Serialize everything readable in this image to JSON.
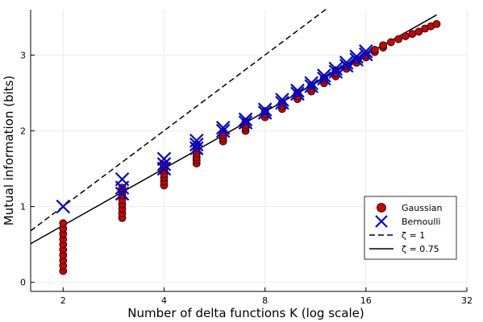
{
  "chart_data": {
    "type": "scatter",
    "xlabel": "Number of delta functions K (log scale)",
    "ylabel": "Mutual information (bits)",
    "x_scale": "log2",
    "xlim": [
      1.6,
      32
    ],
    "ylim": [
      -0.12,
      3.6
    ],
    "x_ticks": [
      2,
      4,
      8,
      16,
      32
    ],
    "x_tick_labels": [
      "2",
      "4",
      "8",
      "16",
      "32"
    ],
    "y_ticks": [
      0,
      1,
      2,
      3
    ],
    "y_tick_labels": [
      "0",
      "1",
      "2",
      "3"
    ],
    "grid": true,
    "legend_position": "bottom-right",
    "series": [
      {
        "name": "Gaussian",
        "kind": "scatter",
        "marker": "circle",
        "color": "#cc0000",
        "points": [
          [
            2,
            0.15
          ],
          [
            2,
            0.22
          ],
          [
            2,
            0.29
          ],
          [
            2,
            0.36
          ],
          [
            2,
            0.43
          ],
          [
            2,
            0.5
          ],
          [
            2,
            0.57
          ],
          [
            2,
            0.64
          ],
          [
            2,
            0.71
          ],
          [
            2,
            0.78
          ],
          [
            3,
            0.85
          ],
          [
            3,
            0.91
          ],
          [
            3,
            0.97
          ],
          [
            3,
            1.03
          ],
          [
            3,
            1.09
          ],
          [
            3,
            1.15
          ],
          [
            3,
            1.2
          ],
          [
            3,
            1.25
          ],
          [
            4,
            1.28
          ],
          [
            4,
            1.33
          ],
          [
            4,
            1.38
          ],
          [
            4,
            1.43
          ],
          [
            4,
            1.48
          ],
          [
            4,
            1.52
          ],
          [
            4,
            1.55
          ],
          [
            5,
            1.57
          ],
          [
            5,
            1.61
          ],
          [
            5,
            1.65
          ],
          [
            5,
            1.69
          ],
          [
            5,
            1.73
          ],
          [
            5,
            1.77
          ],
          [
            5,
            1.8
          ],
          [
            6,
            1.86
          ],
          [
            6,
            1.9
          ],
          [
            6,
            1.94
          ],
          [
            6,
            1.98
          ],
          [
            7,
            2.0
          ],
          [
            7,
            2.04
          ],
          [
            7,
            2.08
          ],
          [
            7,
            2.12
          ],
          [
            8,
            2.18
          ],
          [
            8,
            2.22
          ],
          [
            8,
            2.26
          ],
          [
            9,
            2.29
          ],
          [
            9,
            2.33
          ],
          [
            9,
            2.37
          ],
          [
            10,
            2.42
          ],
          [
            10,
            2.46
          ],
          [
            10,
            2.5
          ],
          [
            11,
            2.52
          ],
          [
            11,
            2.56
          ],
          [
            11,
            2.6
          ],
          [
            12,
            2.63
          ],
          [
            12,
            2.67
          ],
          [
            12,
            2.7
          ],
          [
            13,
            2.72
          ],
          [
            13,
            2.76
          ],
          [
            13,
            2.8
          ],
          [
            14,
            2.82
          ],
          [
            14,
            2.86
          ],
          [
            15,
            2.9
          ],
          [
            15,
            2.94
          ],
          [
            16,
            2.97
          ],
          [
            16,
            3.0
          ],
          [
            17,
            3.04
          ],
          [
            17,
            3.07
          ],
          [
            18,
            3.1
          ],
          [
            18,
            3.13
          ],
          [
            19,
            3.17
          ],
          [
            20,
            3.21
          ],
          [
            21,
            3.25
          ],
          [
            22,
            3.28
          ],
          [
            23,
            3.31
          ],
          [
            24,
            3.35
          ],
          [
            25,
            3.38
          ],
          [
            26,
            3.41
          ]
        ]
      },
      {
        "name": "Bernoulli",
        "kind": "scatter",
        "marker": "x",
        "color": "#0000cc",
        "points": [
          [
            2,
            1.0
          ],
          [
            3,
            1.36
          ],
          [
            3,
            1.25
          ],
          [
            3,
            1.17
          ],
          [
            4,
            1.63
          ],
          [
            4,
            1.56
          ],
          [
            4,
            1.5
          ],
          [
            5,
            1.87
          ],
          [
            5,
            1.82
          ],
          [
            5,
            1.77
          ],
          [
            6,
            2.04
          ],
          [
            6,
            2.0
          ],
          [
            7,
            2.15
          ],
          [
            7,
            2.11
          ],
          [
            8,
            2.28
          ],
          [
            8,
            2.24
          ],
          [
            9,
            2.41
          ],
          [
            9,
            2.37
          ],
          [
            10,
            2.53
          ],
          [
            10,
            2.49
          ],
          [
            11,
            2.63
          ],
          [
            11,
            2.59
          ],
          [
            12,
            2.73
          ],
          [
            12,
            2.69
          ],
          [
            13,
            2.82
          ],
          [
            13,
            2.78
          ],
          [
            14,
            2.9
          ],
          [
            14,
            2.86
          ],
          [
            15,
            2.98
          ],
          [
            15,
            2.94
          ],
          [
            16,
            3.05
          ],
          [
            16,
            3.01
          ]
        ]
      },
      {
        "name": "ζ = 1",
        "kind": "line",
        "dash": "dashed",
        "color": "#000000",
        "x": [
          1.6,
          12.2
        ],
        "y": [
          0.68,
          3.61
        ]
      },
      {
        "name": "ζ = 0.75",
        "kind": "line",
        "dash": "solid",
        "color": "#000000",
        "x": [
          1.6,
          26
        ],
        "y": [
          0.51,
          3.53
        ]
      }
    ]
  }
}
